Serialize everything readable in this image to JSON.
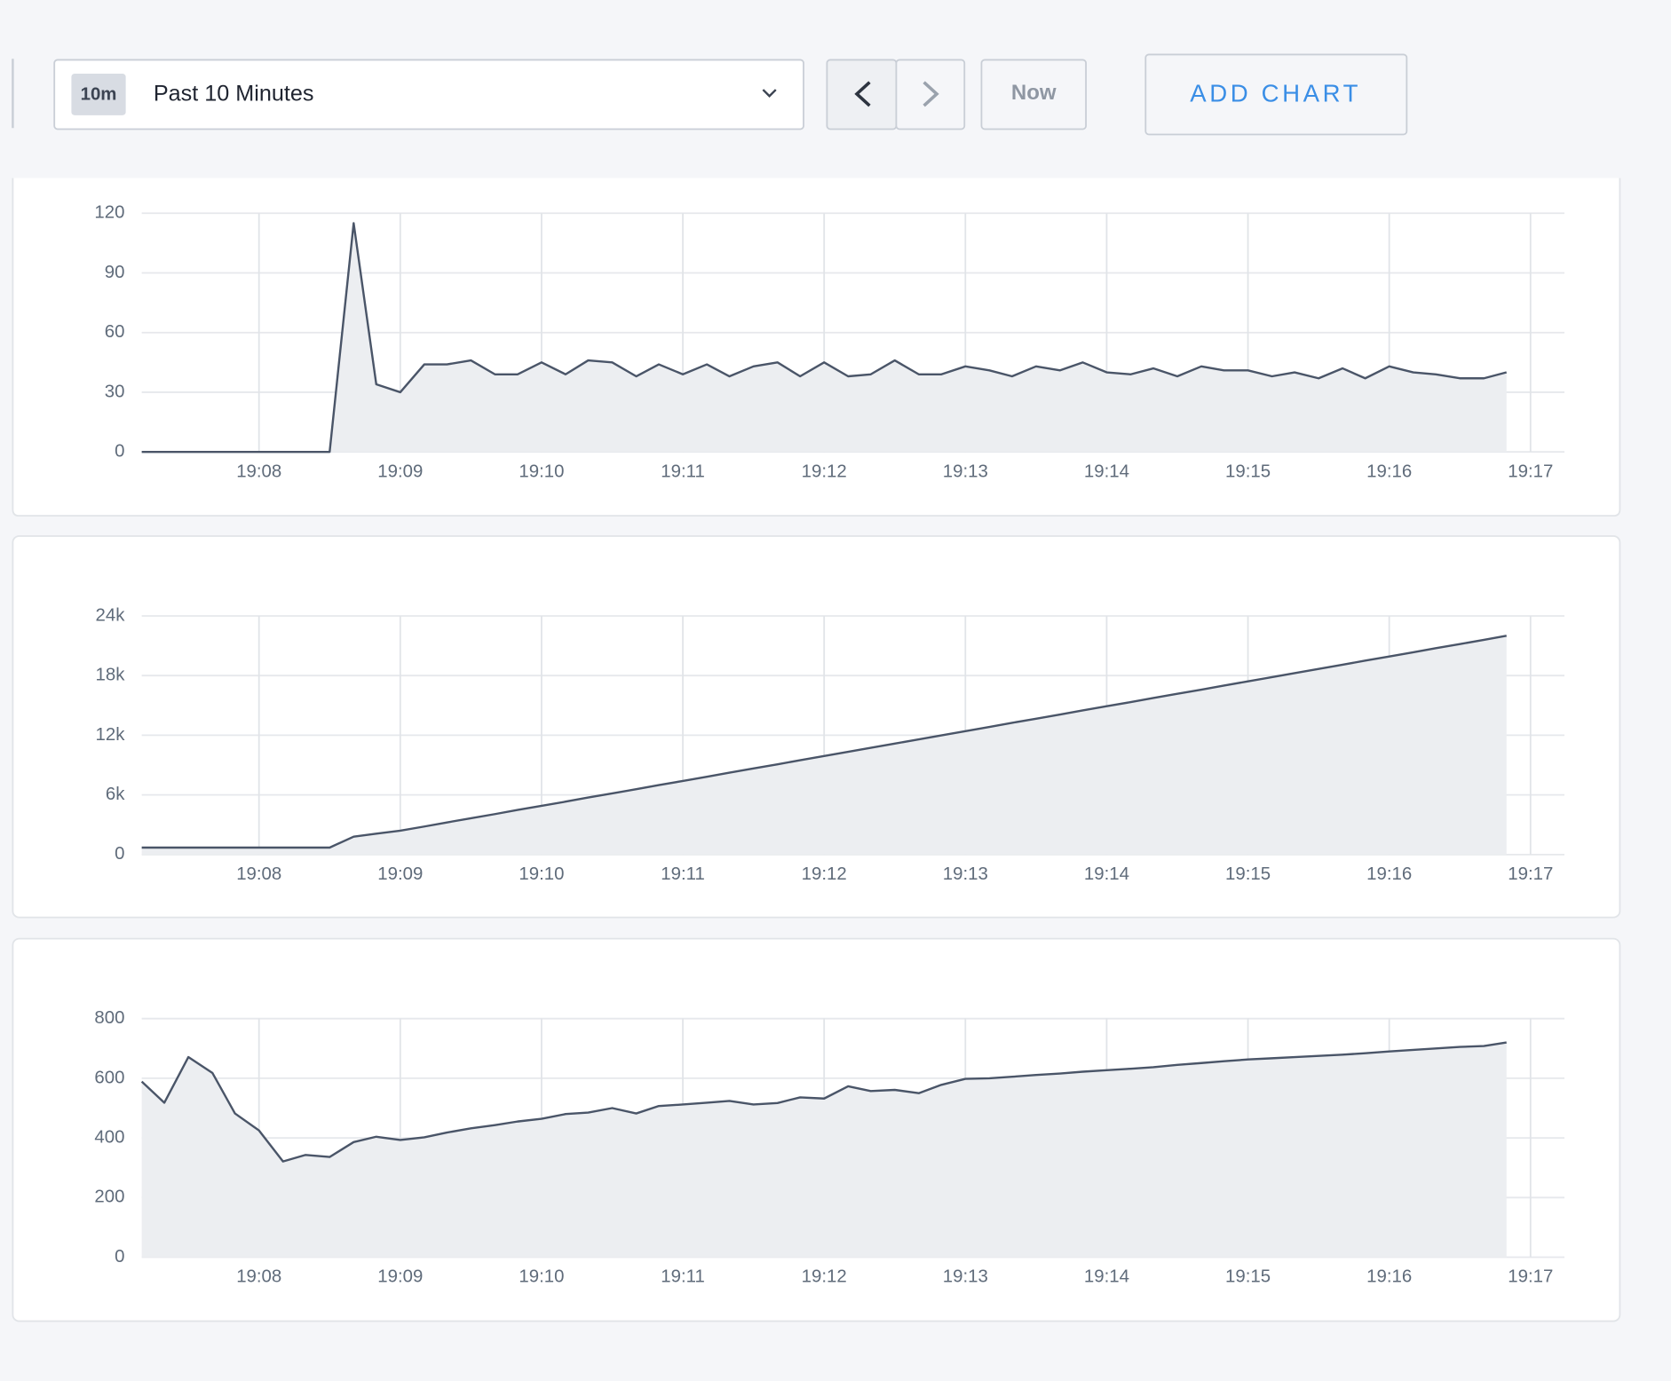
{
  "toolbar": {
    "range_badge": "10m",
    "range_label": "Past 10 Minutes",
    "now_button": "Now",
    "add_chart_button": "ADD CHART"
  },
  "chart_data": [
    {
      "type": "area",
      "color": "#4a5568",
      "fill_color": "#eceef1",
      "grid": true,
      "x": [
        7.17,
        7.33,
        7.5,
        7.67,
        7.83,
        8,
        8.17,
        8.33,
        8.5,
        8.67,
        8.83,
        9,
        9.17,
        9.33,
        9.5,
        9.67,
        9.83,
        10,
        10.17,
        10.33,
        10.5,
        10.67,
        10.83,
        11,
        11.17,
        11.33,
        11.5,
        11.67,
        11.83,
        12,
        12.17,
        12.33,
        12.5,
        12.67,
        12.83,
        13,
        13.17,
        13.33,
        13.5,
        13.67,
        13.83,
        14,
        14.17,
        14.33,
        14.5,
        14.67,
        14.83,
        15,
        15.17,
        15.33,
        15.5,
        15.67,
        15.83,
        16,
        16.17,
        16.33,
        16.5,
        16.67,
        16.83
      ],
      "values": [
        0,
        0,
        0,
        0,
        0,
        0,
        0,
        0,
        0,
        115,
        34,
        30,
        44,
        44,
        46,
        39,
        39,
        45,
        39,
        46,
        45,
        38,
        44,
        39,
        44,
        38,
        43,
        45,
        38,
        45,
        38,
        39,
        46,
        39,
        39,
        43,
        41,
        38,
        43,
        41,
        45,
        40,
        39,
        42,
        38,
        43,
        41,
        41,
        38,
        40,
        37,
        42,
        37,
        43,
        40,
        39,
        37,
        37,
        40
      ],
      "xlim": [
        7.17,
        17.24
      ],
      "ylim": [
        0,
        120
      ],
      "xticks": [
        {
          "value": 8,
          "label": "19:08"
        },
        {
          "value": 9,
          "label": "19:09"
        },
        {
          "value": 10,
          "label": "19:10"
        },
        {
          "value": 11,
          "label": "19:11"
        },
        {
          "value": 12,
          "label": "19:12"
        },
        {
          "value": 13,
          "label": "19:13"
        },
        {
          "value": 14,
          "label": "19:14"
        },
        {
          "value": 15,
          "label": "19:15"
        },
        {
          "value": 16,
          "label": "19:16"
        },
        {
          "value": 17,
          "label": "19:17"
        }
      ],
      "yticks": [
        0,
        30,
        60,
        90,
        120
      ]
    },
    {
      "type": "area",
      "color": "#4a5568",
      "fill_color": "#eceef1",
      "grid": true,
      "x": [
        7.17,
        7.33,
        7.5,
        7.67,
        7.83,
        8,
        8.17,
        8.33,
        8.5,
        8.67,
        8.83,
        9,
        9.17,
        9.33,
        9.5,
        9.67,
        9.83,
        10,
        10.17,
        10.33,
        10.5,
        10.67,
        10.83,
        11,
        11.17,
        11.33,
        11.5,
        11.67,
        11.83,
        12,
        12.17,
        12.33,
        12.5,
        12.67,
        12.83,
        13,
        13.17,
        13.33,
        13.5,
        13.67,
        13.83,
        14,
        14.17,
        14.33,
        14.5,
        14.67,
        14.83,
        15,
        15.17,
        15.33,
        15.5,
        15.67,
        15.83,
        16,
        16.17,
        16.33,
        16.5,
        16.67,
        16.83
      ],
      "values": [
        700,
        700,
        700,
        700,
        700,
        700,
        700,
        700,
        700,
        1800,
        2100,
        2400,
        2820,
        3230,
        3650,
        4070,
        4490,
        4900,
        5320,
        5740,
        6150,
        6570,
        6990,
        7400,
        7820,
        8240,
        8660,
        9070,
        9490,
        9910,
        10330,
        10740,
        11160,
        11580,
        11990,
        12410,
        12830,
        13250,
        13660,
        14080,
        14500,
        14920,
        15330,
        15750,
        16170,
        16580,
        17000,
        17420,
        17840,
        18250,
        18670,
        19090,
        19510,
        19920,
        20340,
        20760,
        21170,
        21590,
        22010
      ],
      "xlim": [
        7.17,
        17.24
      ],
      "ylim": [
        0,
        24000
      ],
      "xticks": [
        {
          "value": 8,
          "label": "19:08"
        },
        {
          "value": 9,
          "label": "19:09"
        },
        {
          "value": 10,
          "label": "19:10"
        },
        {
          "value": 11,
          "label": "19:11"
        },
        {
          "value": 12,
          "label": "19:12"
        },
        {
          "value": 13,
          "label": "19:13"
        },
        {
          "value": 14,
          "label": "19:14"
        },
        {
          "value": 15,
          "label": "19:15"
        },
        {
          "value": 16,
          "label": "19:16"
        },
        {
          "value": 17,
          "label": "19:17"
        }
      ],
      "yticks": [
        0,
        {
          "value": 6000,
          "label": "6k"
        },
        {
          "value": 12000,
          "label": "12k"
        },
        {
          "value": 18000,
          "label": "18k"
        },
        {
          "value": 24000,
          "label": "24k"
        }
      ]
    },
    {
      "type": "area",
      "color": "#4a5568",
      "fill_color": "#eceef1",
      "grid": true,
      "x": [
        7.17,
        7.33,
        7.5,
        7.67,
        7.83,
        8,
        8.17,
        8.33,
        8.5,
        8.67,
        8.83,
        9,
        9.17,
        9.33,
        9.5,
        9.67,
        9.83,
        10,
        10.17,
        10.33,
        10.5,
        10.67,
        10.83,
        11,
        11.17,
        11.33,
        11.5,
        11.67,
        11.83,
        12,
        12.17,
        12.33,
        12.5,
        12.67,
        12.83,
        13,
        13.17,
        13.33,
        13.5,
        13.67,
        13.83,
        14,
        14.17,
        14.33,
        14.5,
        14.67,
        14.83,
        15,
        15.17,
        15.33,
        15.5,
        15.67,
        15.83,
        16,
        16.17,
        16.33,
        16.5,
        16.67,
        16.83
      ],
      "values": [
        589,
        518,
        671,
        618,
        482,
        425,
        321,
        343,
        336,
        386,
        404,
        393,
        402,
        418,
        432,
        443,
        455,
        464,
        480,
        485,
        500,
        482,
        507,
        512,
        518,
        524,
        512,
        517,
        536,
        532,
        573,
        557,
        561,
        550,
        578,
        598,
        600,
        605,
        611,
        616,
        622,
        627,
        632,
        637,
        645,
        651,
        657,
        663,
        667,
        671,
        675,
        679,
        684,
        690,
        695,
        700,
        705,
        708,
        720
      ],
      "xlim": [
        7.17,
        17.24
      ],
      "ylim": [
        0,
        800
      ],
      "xticks": [
        {
          "value": 8,
          "label": "19:08"
        },
        {
          "value": 9,
          "label": "19:09"
        },
        {
          "value": 10,
          "label": "19:10"
        },
        {
          "value": 11,
          "label": "19:11"
        },
        {
          "value": 12,
          "label": "19:12"
        },
        {
          "value": 13,
          "label": "19:13"
        },
        {
          "value": 14,
          "label": "19:14"
        },
        {
          "value": 15,
          "label": "19:15"
        },
        {
          "value": 16,
          "label": "19:16"
        },
        {
          "value": 17,
          "label": "19:17"
        }
      ],
      "yticks": [
        0,
        200,
        400,
        600,
        800
      ]
    }
  ]
}
